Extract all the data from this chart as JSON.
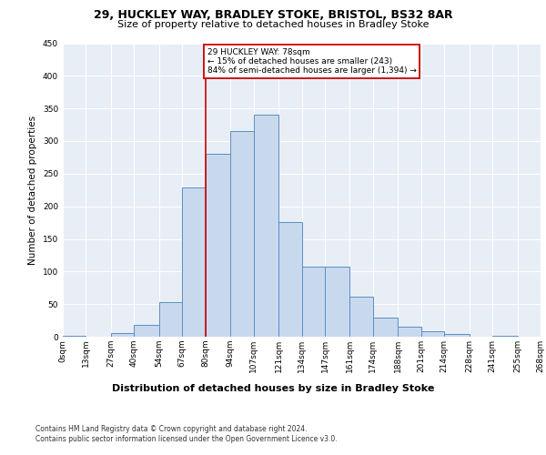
{
  "title1": "29, HUCKLEY WAY, BRADLEY STOKE, BRISTOL, BS32 8AR",
  "title2": "Size of property relative to detached houses in Bradley Stoke",
  "xlabel": "Distribution of detached houses by size in Bradley Stoke",
  "ylabel": "Number of detached properties",
  "footnote": "Contains HM Land Registry data © Crown copyright and database right 2024.\nContains public sector information licensed under the Open Government Licence v3.0.",
  "bin_edges": [
    0,
    13,
    27,
    40,
    54,
    67,
    80,
    94,
    107,
    121,
    134,
    147,
    161,
    174,
    188,
    201,
    214,
    228,
    241,
    255,
    268
  ],
  "bar_heights": [
    2,
    0,
    5,
    18,
    53,
    229,
    280,
    316,
    341,
    176,
    108,
    108,
    62,
    30,
    15,
    8,
    4,
    0,
    2,
    0
  ],
  "bar_color": "#c8d9ee",
  "bar_edge_color": "#5a8fc3",
  "property_line_x": 80,
  "property_line_color": "#cc0000",
  "annotation_text": "29 HUCKLEY WAY: 78sqm\n← 15% of detached houses are smaller (243)\n84% of semi-detached houses are larger (1,394) →",
  "annotation_box_color": "#cc0000",
  "background_color": "#e8eef5",
  "ylim": [
    0,
    450
  ],
  "yticks": [
    0,
    50,
    100,
    150,
    200,
    250,
    300,
    350,
    400,
    450
  ],
  "title1_fontsize": 9,
  "title2_fontsize": 8,
  "xlabel_fontsize": 8,
  "ylabel_fontsize": 7.5,
  "tick_fontsize": 6.5,
  "annotation_fontsize": 6.5,
  "footnote_fontsize": 5.5
}
